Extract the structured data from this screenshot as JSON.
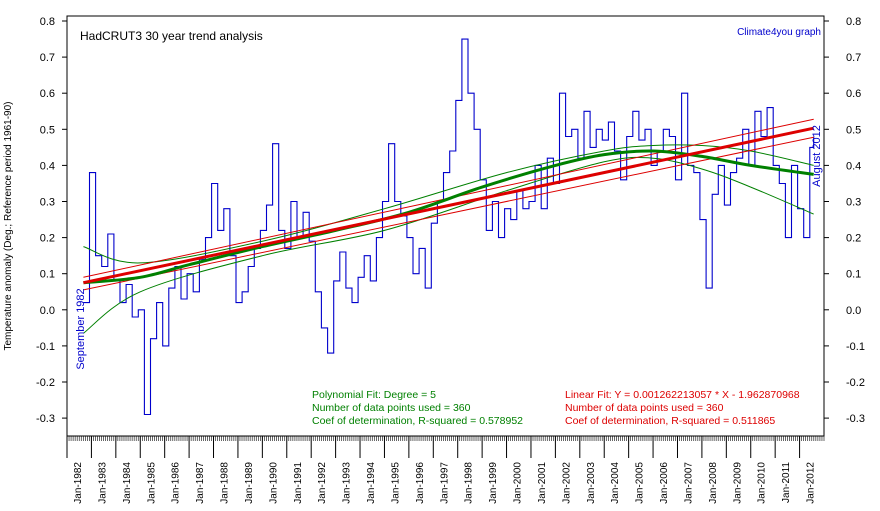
{
  "chart_data": {
    "type": "line",
    "title": "HadCRUT3 30 year trend analysis",
    "source_label": "Climate4you graph",
    "ylabel": "Temperature anomaly (Deg.; Reference period 1961-90)",
    "start_label": "September 1982",
    "end_label": "August 2012",
    "x_range": [
      1982.0,
      2013.0
    ],
    "ylim": [
      -0.35,
      0.8
    ],
    "y_ticks": [
      "0.8",
      "0.7",
      "0.6",
      "0.5",
      "0.4",
      "0.3",
      "0.2",
      "0.1",
      "0.0",
      "-0.1",
      "-0.2",
      "-0.3"
    ],
    "x_tick_labels": [
      "Jan-1982",
      "Jan-1983",
      "Jan-1984",
      "Jan-1985",
      "Jan-1986",
      "Jan-1987",
      "Jan-1988",
      "Jan-1989",
      "Jan-1990",
      "Jan-1991",
      "Jan-1992",
      "Jan-1993",
      "Jan-1994",
      "Jan-1995",
      "Jan-1996",
      "Jan-1997",
      "Jan-1998",
      "Jan-1999",
      "Jan-2000",
      "Jan-2001",
      "Jan-2002",
      "Jan-2003",
      "Jan-2004",
      "Jan-2005",
      "Jan-2006",
      "Jan-2007",
      "Jan-2008",
      "Jan-2009",
      "Jan-2010",
      "Jan-2011",
      "Jan-2012"
    ],
    "colors": {
      "monthly": "#0000cc",
      "poly": "#008000",
      "linear": "#dd0000"
    },
    "series": [
      {
        "name": "HadCRUT3 monthly",
        "x": [
          1982.67,
          1982.92,
          1983.17,
          1983.42,
          1983.67,
          1983.92,
          1984.17,
          1984.42,
          1984.67,
          1984.92,
          1985.17,
          1985.42,
          1985.67,
          1985.92,
          1986.17,
          1986.42,
          1986.67,
          1986.92,
          1987.17,
          1987.42,
          1987.67,
          1987.92,
          1988.17,
          1988.42,
          1988.67,
          1988.92,
          1989.17,
          1989.42,
          1989.67,
          1989.92,
          1990.17,
          1990.42,
          1990.67,
          1990.92,
          1991.17,
          1991.42,
          1991.67,
          1991.92,
          1992.17,
          1992.42,
          1992.67,
          1992.92,
          1993.17,
          1993.42,
          1993.67,
          1993.92,
          1994.17,
          1994.42,
          1994.67,
          1994.92,
          1995.17,
          1995.42,
          1995.67,
          1995.92,
          1996.17,
          1996.42,
          1996.67,
          1996.92,
          1997.17,
          1997.42,
          1997.67,
          1997.92,
          1998.17,
          1998.42,
          1998.67,
          1998.92,
          1999.17,
          1999.42,
          1999.67,
          1999.92,
          2000.17,
          2000.42,
          2000.67,
          2000.92,
          2001.17,
          2001.42,
          2001.67,
          2001.92,
          2002.17,
          2002.42,
          2002.67,
          2002.92,
          2003.17,
          2003.42,
          2003.67,
          2003.92,
          2004.17,
          2004.42,
          2004.67,
          2004.92,
          2005.17,
          2005.42,
          2005.67,
          2005.92,
          2006.17,
          2006.42,
          2006.67,
          2006.92,
          2007.17,
          2007.42,
          2007.67,
          2007.92,
          2008.17,
          2008.42,
          2008.67,
          2008.92,
          2009.17,
          2009.42,
          2009.67,
          2009.92,
          2010.17,
          2010.42,
          2010.67,
          2010.92,
          2011.17,
          2011.42,
          2011.67,
          2011.92,
          2012.17,
          2012.42,
          2012.58
        ],
        "y": [
          0.02,
          0.38,
          0.15,
          0.12,
          0.21,
          0.08,
          0.02,
          0.07,
          -0.02,
          0.0,
          -0.29,
          -0.08,
          0.02,
          -0.1,
          0.06,
          0.12,
          0.03,
          0.1,
          0.05,
          0.14,
          0.2,
          0.35,
          0.22,
          0.28,
          0.15,
          0.02,
          0.05,
          0.12,
          0.17,
          0.22,
          0.29,
          0.46,
          0.22,
          0.17,
          0.3,
          0.2,
          0.27,
          0.19,
          0.05,
          -0.05,
          -0.12,
          0.08,
          0.16,
          0.06,
          0.02,
          0.09,
          0.15,
          0.08,
          0.2,
          0.3,
          0.46,
          0.3,
          0.26,
          0.2,
          0.1,
          0.17,
          0.06,
          0.24,
          0.3,
          0.38,
          0.44,
          0.58,
          0.75,
          0.6,
          0.5,
          0.36,
          0.22,
          0.3,
          0.2,
          0.28,
          0.25,
          0.33,
          0.28,
          0.3,
          0.4,
          0.28,
          0.42,
          0.35,
          0.6,
          0.48,
          0.5,
          0.42,
          0.55,
          0.45,
          0.5,
          0.47,
          0.52,
          0.44,
          0.36,
          0.48,
          0.55,
          0.47,
          0.5,
          0.4,
          0.44,
          0.5,
          0.48,
          0.36,
          0.6,
          0.4,
          0.38,
          0.25,
          0.06,
          0.32,
          0.4,
          0.29,
          0.38,
          0.42,
          0.5,
          0.4,
          0.55,
          0.48,
          0.56,
          0.4,
          0.35,
          0.2,
          0.4,
          0.28,
          0.2,
          0.45,
          0.48
        ]
      },
      {
        "name": "Polynomial Fit",
        "x": [
          1982.67,
          1985,
          1987,
          1990,
          1993,
          1996,
          1999,
          2002,
          2004,
          2006,
          2008,
          2010,
          2012.58
        ],
        "y": [
          0.075,
          0.09,
          0.125,
          0.175,
          0.22,
          0.27,
          0.34,
          0.4,
          0.43,
          0.44,
          0.425,
          0.4,
          0.375
        ]
      },
      {
        "name": "Linear Fit",
        "x": [
          1982.67,
          2012.58
        ],
        "y": [
          0.075,
          0.503
        ]
      }
    ],
    "bands": {
      "poly_upper": {
        "x": [
          1982.67,
          1985,
          1990,
          1995,
          2000,
          2004,
          2006,
          2008,
          2010,
          2012.58
        ],
        "y": [
          0.175,
          0.13,
          0.19,
          0.28,
          0.38,
          0.44,
          0.455,
          0.455,
          0.44,
          0.4
        ]
      },
      "poly_lower": {
        "x": [
          1982.67,
          1985,
          1990,
          1995,
          2000,
          2004,
          2006,
          2008,
          2010,
          2012.58
        ],
        "y": [
          -0.065,
          0.05,
          0.15,
          0.22,
          0.33,
          0.41,
          0.42,
          0.39,
          0.34,
          0.265
        ]
      },
      "lin_upper": {
        "x": [
          1982.67,
          2012.58
        ],
        "y": [
          0.09,
          0.528
        ]
      },
      "lin_lower": {
        "x": [
          1982.67,
          2012.58
        ],
        "y": [
          0.055,
          0.478
        ]
      }
    },
    "annotations": {
      "poly": [
        "Polynomial Fit:   Degree = 5",
        "Number of data points used = 360",
        "Coef of determination, R-squared = 0.578952"
      ],
      "linear": [
        "Linear Fit:   Y = 0.001262213057 * X - 1.962870968",
        "Number of data points used = 360",
        "Coef of determination, R-squared = 0.511865"
      ]
    }
  }
}
